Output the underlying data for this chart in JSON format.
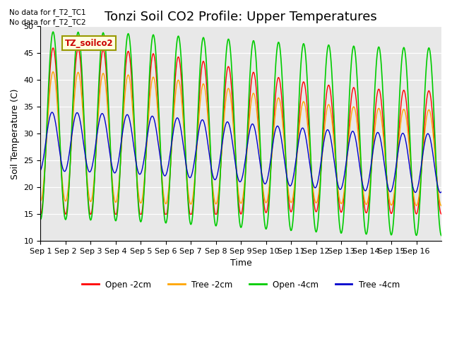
{
  "title": "Tonzi Soil CO2 Profile: Upper Temperatures",
  "ylabel": "Soil Temperature (C)",
  "xlabel": "Time",
  "no_data_text": [
    "No data for f_T2_TC1",
    "No data for f_T2_TC2"
  ],
  "legend_labels": [
    "Open -2cm",
    "Tree -2cm",
    "Open -4cm",
    "Tree -4cm"
  ],
  "legend_colors": [
    "#ff0000",
    "#ffa500",
    "#00cc00",
    "#0000cc"
  ],
  "box_label": "TZ_soilco2",
  "ylim": [
    10,
    50
  ],
  "yticks": [
    10,
    15,
    20,
    25,
    30,
    35,
    40,
    45,
    50
  ],
  "xtick_labels": [
    "Sep 1",
    "Sep 2",
    "Sep 3",
    "Sep 4",
    "Sep 5",
    "Sep 6",
    "Sep 7",
    "Sep 8",
    "Sep 9",
    "Sep 10",
    "Sep 11",
    "Sep 12",
    "Sep 13",
    "Sep 14",
    "Sep 15",
    "Sep 16"
  ],
  "bg_color": "#e8e8e8",
  "title_fontsize": 13,
  "axis_fontsize": 9,
  "tick_fontsize": 8
}
